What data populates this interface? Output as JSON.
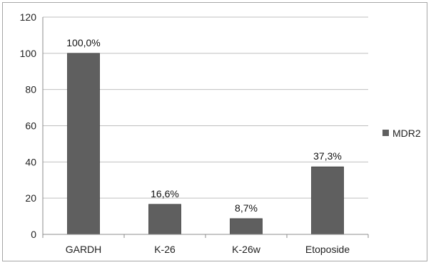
{
  "chart_data": {
    "type": "bar",
    "categories": [
      "GARDH",
      "K-26",
      "K-26w",
      "Etoposide"
    ],
    "series": [
      {
        "name": "MDR2",
        "values": [
          100.0,
          16.6,
          8.7,
          37.3
        ],
        "labels": [
          "100,0%",
          "16,6%",
          "8,7%",
          "37,3%"
        ]
      }
    ],
    "yticks": [
      "0",
      "20",
      "40",
      "60",
      "80",
      "100",
      "120"
    ],
    "ylim": [
      0,
      120
    ],
    "grid": true,
    "legend_position": "right",
    "colors": {
      "bar": "#5f5f5f",
      "bar_edge": "#404040",
      "grid": "#bfbfbf",
      "axis": "#8c8c8c"
    }
  }
}
